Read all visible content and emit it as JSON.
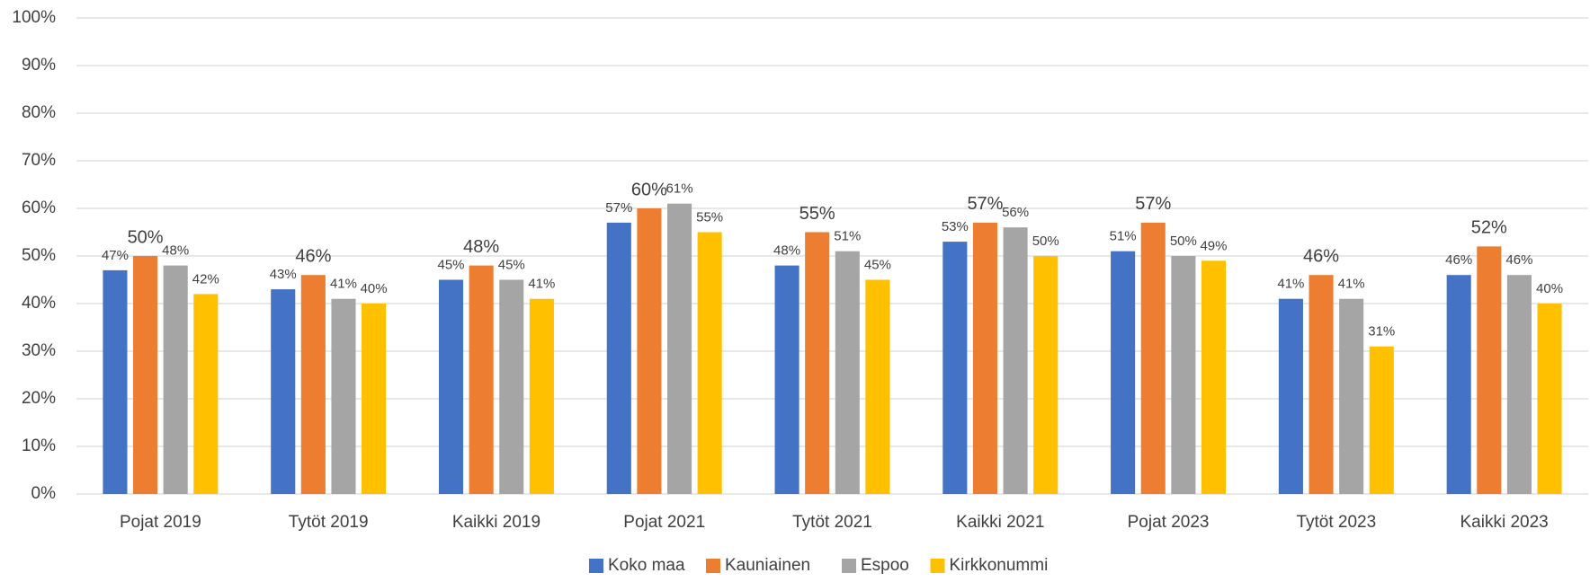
{
  "chart_data": {
    "type": "bar",
    "categories": [
      "Pojat 2019",
      "Tytöt 2019",
      "Kaikki 2019",
      "Pojat 2021",
      "Tytöt 2021",
      "Kaikki 2021",
      "Pojat 2023",
      "Tytöt 2023",
      "Kaikki 2023"
    ],
    "series": [
      {
        "name": "Koko maa",
        "color": "#4472c4",
        "values": [
          47,
          43,
          45,
          57,
          48,
          53,
          51,
          41,
          46
        ],
        "value_labels": [
          "47%",
          "43%",
          "45%",
          "57%",
          "48%",
          "53%",
          "51%",
          "41%",
          "46%"
        ]
      },
      {
        "name": "Kauniainen",
        "color": "#ed7d31",
        "values": [
          50,
          46,
          48,
          60,
          55,
          57,
          57,
          46,
          52
        ],
        "value_labels": [
          "50%",
          "46%",
          "48%",
          "60%",
          "55%",
          "57%",
          "57%",
          "46%",
          "52%"
        ]
      },
      {
        "name": "Espoo",
        "color": "#a5a5a5",
        "values": [
          48,
          41,
          45,
          61,
          51,
          56,
          50,
          41,
          46
        ],
        "value_labels": [
          "48%",
          "41%",
          "45%",
          "61%",
          "51%",
          "56%",
          "50%",
          "41%",
          "46%"
        ]
      },
      {
        "name": "Kirkkonummi",
        "color": "#ffc000",
        "values": [
          42,
          40,
          41,
          55,
          45,
          50,
          49,
          31,
          40
        ],
        "value_labels": [
          "42%",
          "40%",
          "41%",
          "55%",
          "45%",
          "50%",
          "49%",
          "31%",
          "40%"
        ]
      }
    ],
    "ylim": [
      0,
      100
    ],
    "yticks": [
      {
        "value": 0,
        "label": "0%"
      },
      {
        "value": 10,
        "label": "10%"
      },
      {
        "value": 20,
        "label": "20%"
      },
      {
        "value": 30,
        "label": "30%"
      },
      {
        "value": 40,
        "label": "40%"
      },
      {
        "value": 50,
        "label": "50%"
      },
      {
        "value": 60,
        "label": "60%"
      },
      {
        "value": 70,
        "label": "70%"
      },
      {
        "value": 80,
        "label": "80%"
      },
      {
        "value": 90,
        "label": "90%"
      },
      {
        "value": 100,
        "label": "100%"
      }
    ],
    "grid": true,
    "legend": "bottom"
  }
}
